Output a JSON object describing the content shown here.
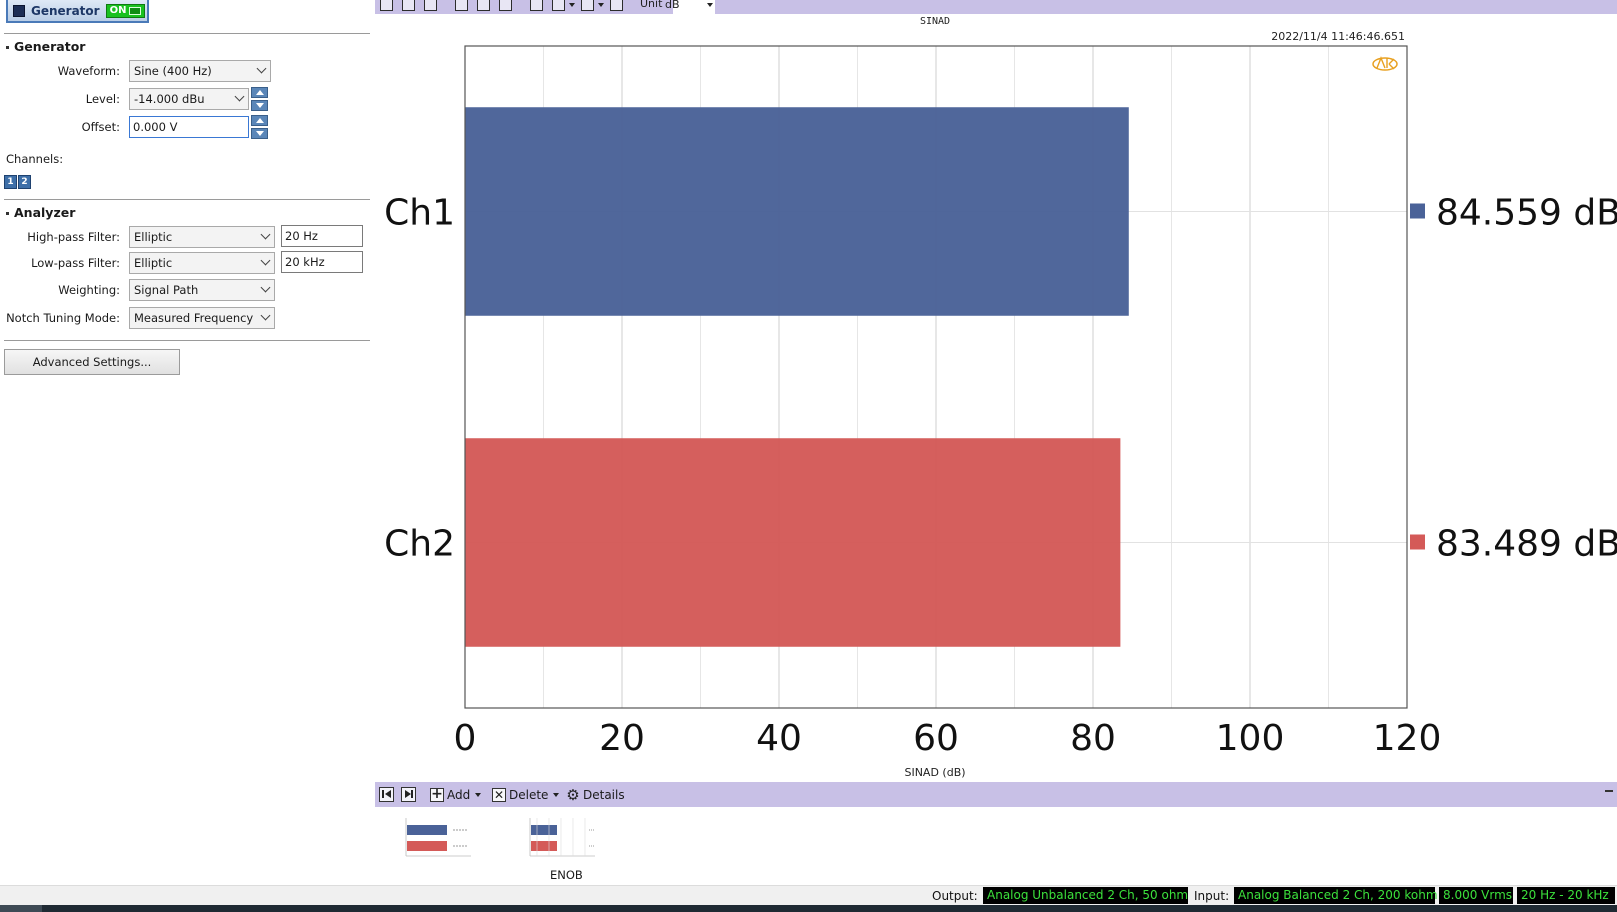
{
  "generator_toggle": {
    "label": "Generator",
    "state": "ON"
  },
  "generator": {
    "section_title": "Generator",
    "waveform_label": "Waveform:",
    "waveform_value": "Sine (400 Hz)",
    "level_label": "Level:",
    "level_value": "-14.000 dBu",
    "offset_label": "Offset:",
    "offset_value": "0.000 V",
    "channels_label": "Channels:",
    "channel_buttons": [
      "1",
      "2"
    ]
  },
  "analyzer": {
    "section_title": "Analyzer",
    "highpass_label": "High-pass Filter:",
    "highpass_type": "Elliptic",
    "highpass_freq": "20 Hz",
    "lowpass_label": "Low-pass Filter:",
    "lowpass_type": "Elliptic",
    "lowpass_freq": "20 kHz",
    "weighting_label": "Weighting:",
    "weighting_value": "Signal Path",
    "notch_label": "Notch Tuning Mode:",
    "notch_value": "Measured Frequency",
    "advanced_button": "Advanced Settings..."
  },
  "top_toolbar": {
    "unit_label": "Unit",
    "unit_value": "dB"
  },
  "chart_meta": {
    "timestamp": "2022/11/4 11:46:46.651"
  },
  "chart_data": {
    "type": "bar",
    "orientation": "horizontal",
    "title": "SINAD",
    "xlabel": "SINAD (dB)",
    "xlim": [
      0,
      120
    ],
    "xticks": [
      "0",
      "20",
      "40",
      "60",
      "80",
      "100",
      "120"
    ],
    "grid": true,
    "categories": [
      "Ch1",
      "Ch2"
    ],
    "values": [
      84.559,
      83.489
    ],
    "colors": [
      "#4a6298",
      "#d45a58"
    ],
    "value_labels": [
      "84.559 dB",
      "83.489 dB"
    ]
  },
  "bottom_toolbar": {
    "add_label": "Add",
    "delete_label": "Delete",
    "details_label": "Details"
  },
  "thumbnails": [
    {
      "label": ""
    },
    {
      "label": "ENOB"
    }
  ],
  "status_bar": {
    "output_label": "Output:",
    "output_value": "Analog Unbalanced 2 Ch, 50 ohm",
    "input_label": "Input:",
    "input_value": "Analog Balanced 2 Ch, 200 kohm",
    "level_value": "8.000 Vrms",
    "bandwidth_value": "20 Hz - 20 kHz"
  }
}
